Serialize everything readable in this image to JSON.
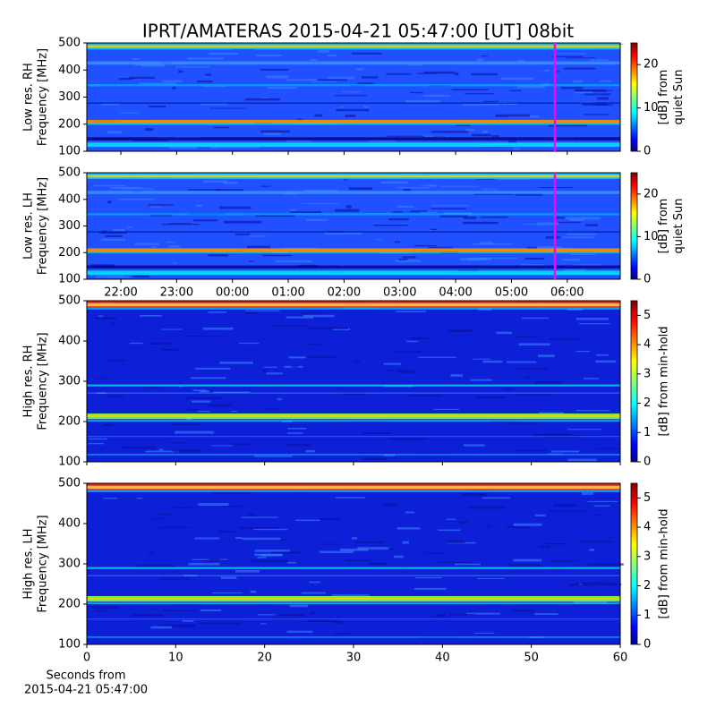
{
  "chart_data": [
    {
      "type": "heatmap",
      "title": "IPRT/AMATERAS 2015-04-21 05:47:00 [UT]   08bit",
      "ylabel": [
        "Low res. RH",
        "Frequency [MHz]"
      ],
      "ylim": [
        100,
        500
      ],
      "yticks": [
        100,
        200,
        300,
        400,
        500
      ],
      "xlim": [
        21.39,
        30.95
      ],
      "marker_x": 29.78,
      "marker_color": "#ff00ff",
      "colorbar": {
        "label": [
          "[dB] from",
          "quiet Sun"
        ],
        "lim": [
          0,
          25
        ],
        "ticks": [
          0,
          10,
          20
        ]
      }
    },
    {
      "type": "heatmap",
      "ylabel": [
        "Low res. LH",
        "Frequency [MHz]"
      ],
      "ylim": [
        100,
        500
      ],
      "yticks": [
        100,
        200,
        300,
        400,
        500
      ],
      "xlim": [
        21.39,
        30.95
      ],
      "marker_x": 29.78,
      "marker_color": "#ff00ff",
      "xticks": [
        {
          "value": 22,
          "label": "22:00"
        },
        {
          "value": 23,
          "label": "23:00"
        },
        {
          "value": 24,
          "label": "00:00"
        },
        {
          "value": 25,
          "label": "01:00"
        },
        {
          "value": 26,
          "label": "02:00"
        },
        {
          "value": 27,
          "label": "03:00"
        },
        {
          "value": 28,
          "label": "04:00"
        },
        {
          "value": 29,
          "label": "05:00"
        },
        {
          "value": 30,
          "label": "06:00"
        }
      ],
      "colorbar": {
        "label": [
          "[dB] from",
          "quiet Sun"
        ],
        "lim": [
          0,
          25
        ],
        "ticks": [
          0,
          10,
          20
        ]
      }
    },
    {
      "type": "heatmap",
      "ylabel": [
        "High res. RH",
        "Frequency [MHz]"
      ],
      "ylim": [
        100,
        500
      ],
      "yticks": [
        100,
        200,
        300,
        400,
        500
      ],
      "xlim": [
        0,
        60
      ],
      "colorbar": {
        "label": [
          "[dB] from min-hold"
        ],
        "lim": [
          0,
          5.5
        ],
        "ticks": [
          0,
          1,
          2,
          3,
          4,
          5
        ]
      }
    },
    {
      "type": "heatmap",
      "ylabel": [
        "High res. LH",
        "Frequency [MHz]"
      ],
      "ylim": [
        100,
        500
      ],
      "yticks": [
        100,
        200,
        300,
        400,
        500
      ],
      "xlim": [
        0,
        60
      ],
      "xticks": [
        0,
        10,
        20,
        30,
        40,
        50,
        60
      ],
      "xlabel": [
        "Seconds from",
        "2015-04-21 05:47:00"
      ],
      "colorbar": {
        "label": [
          "[dB] from min-hold"
        ],
        "lim": [
          0,
          5.5
        ],
        "ticks": [
          0,
          1,
          2,
          3,
          4,
          5
        ]
      }
    }
  ]
}
